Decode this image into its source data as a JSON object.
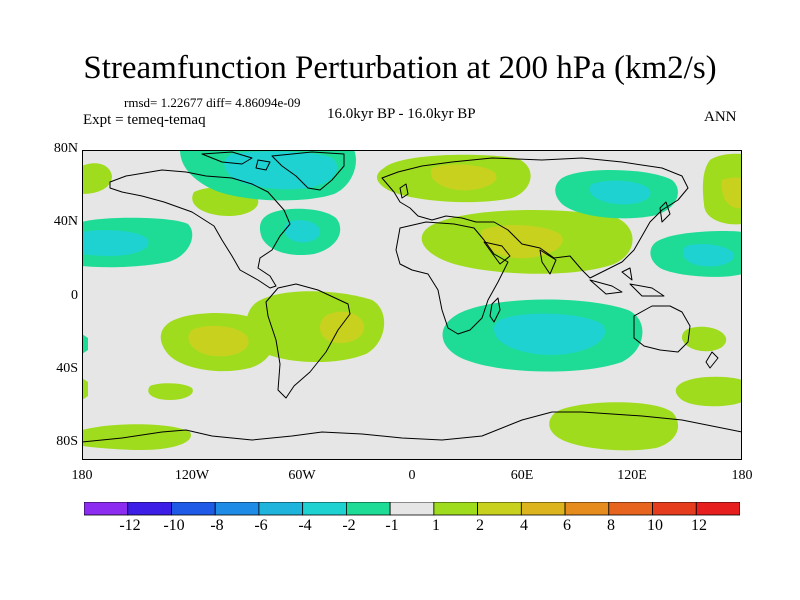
{
  "title": "Streamfunction Perturbation at 200 hPa (km2/s)",
  "stats": "rmsd= 1.22677 diff= 4.86094e-09",
  "experiment": "Expt = temeq-temaq",
  "period": "16.0kyr BP - 16.0kyr BP",
  "season": "ANN",
  "lat_ticks": [
    "80N",
    "40N",
    "0",
    "40S",
    "80S"
  ],
  "lon_ticks": [
    "180",
    "120W",
    "60W",
    "0",
    "60E",
    "120E",
    "180"
  ],
  "colorbar": {
    "labels": [
      "-12",
      "-10",
      "-8",
      "-6",
      "-4",
      "-2",
      "-1",
      "1",
      "2",
      "4",
      "6",
      "8",
      "10",
      "12"
    ],
    "colors": [
      "#8c2cf0",
      "#3c1ee6",
      "#1e5ae6",
      "#1e8ce6",
      "#1eb4dc",
      "#1ed2d2",
      "#1edc96",
      "#e6e6e6",
      "#a0dc1e",
      "#c8d21e",
      "#dcb41e",
      "#e68c1e",
      "#e6641e",
      "#e63c1e",
      "#e61e1e"
    ]
  },
  "chart_data": {
    "type": "map",
    "variable": "Streamfunction Perturbation",
    "units": "km2/s",
    "level": "200 hPa",
    "lat_range": [
      -90,
      90
    ],
    "lon_range": [
      -180,
      180
    ],
    "contour_levels": [
      -12,
      -10,
      -8,
      -6,
      -4,
      -2,
      -1,
      1,
      2,
      4,
      6,
      8,
      10,
      12
    ],
    "anomalies": [
      {
        "lon": -30,
        "lat": -20,
        "value": 4
      },
      {
        "lon": -115,
        "lat": -20,
        "value": 4
      },
      {
        "lon": 50,
        "lat": 40,
        "value": 4
      },
      {
        "lon": 10,
        "lat": 68,
        "value": 4
      },
      {
        "lon": 175,
        "lat": 55,
        "value": 2
      },
      {
        "lon": 160,
        "lat": 20,
        "value": -2
      },
      {
        "lon": -170,
        "lat": 30,
        "value": -2
      },
      {
        "lon": -75,
        "lat": 35,
        "value": -2
      },
      {
        "lon": -80,
        "lat": 68,
        "value": -2
      },
      {
        "lon": 115,
        "lat": 48,
        "value": -2
      },
      {
        "lon": 80,
        "lat": -20,
        "value": -2
      },
      {
        "lon": 95,
        "lat": -78,
        "value": 2
      },
      {
        "lon": -135,
        "lat": -78,
        "value": 2
      },
      {
        "lon": -135,
        "lat": -50,
        "value": 2
      },
      {
        "lon": 160,
        "lat": -50,
        "value": 2
      },
      {
        "lon": 150,
        "lat": -30,
        "value": 2
      },
      {
        "lon": -100,
        "lat": 43,
        "value": 2
      }
    ]
  }
}
